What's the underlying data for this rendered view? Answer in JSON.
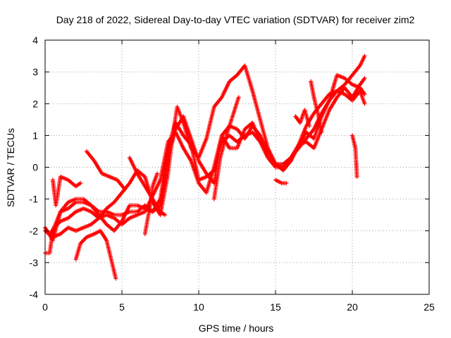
{
  "chart_data": {
    "type": "scatter",
    "title": "Day 218 of 2022, Sidereal Day-to-day VTEC variation (SDTVAR) for receiver zim2",
    "xlabel": "GPS time / hours",
    "ylabel": "SDTVAR / TECUs",
    "xlim": [
      0,
      25
    ],
    "ylim": [
      -4,
      4
    ],
    "xticks": [
      "0",
      "5",
      "10",
      "15",
      "20",
      "25"
    ],
    "yticks": [
      "-4",
      "-3",
      "-2",
      "-1",
      "0",
      "1",
      "2",
      "3",
      "4"
    ],
    "grid": true,
    "marker": "+",
    "color": "#ff0000",
    "series": [
      {
        "points": [
          [
            0,
            -2.0
          ],
          [
            0.5,
            -2.2
          ],
          [
            1,
            -2.1
          ],
          [
            1.5,
            -1.9
          ],
          [
            2,
            -2.0
          ],
          [
            2.5,
            -1.9
          ],
          [
            3,
            -1.8
          ],
          [
            3.5,
            -1.6
          ],
          [
            4,
            -1.3
          ],
          [
            4.5,
            -1.1
          ],
          [
            5,
            -0.8
          ],
          [
            5.5,
            -0.5
          ],
          [
            6,
            -0.1
          ],
          [
            6.5,
            -0.3
          ],
          [
            7,
            -1.1
          ],
          [
            7.5,
            -1.5
          ],
          [
            8,
            -0.2
          ],
          [
            8.3,
            1.0
          ],
          [
            8.6,
            1.9
          ],
          [
            9,
            1.4
          ],
          [
            9.5,
            0.6
          ],
          [
            10,
            0.3
          ],
          [
            10.5,
            0.9
          ],
          [
            11,
            1.9
          ],
          [
            11.5,
            2.2
          ],
          [
            12,
            2.7
          ],
          [
            12.5,
            2.9
          ],
          [
            13,
            3.2
          ],
          [
            13.5,
            2.4
          ],
          [
            14,
            1.5
          ],
          [
            14.5,
            0.6
          ],
          [
            15,
            0.1
          ],
          [
            15.5,
            0.0
          ],
          [
            16,
            0.2
          ],
          [
            16.5,
            0.7
          ],
          [
            17,
            1.3
          ],
          [
            17.5,
            1.7
          ],
          [
            18,
            2.0
          ],
          [
            18.5,
            2.3
          ],
          [
            19,
            2.4
          ],
          [
            19.5,
            2.6
          ],
          [
            20,
            2.9
          ],
          [
            20.5,
            3.2
          ],
          [
            20.8,
            3.5
          ]
        ]
      },
      {
        "points": [
          [
            0,
            -1.9
          ],
          [
            0.5,
            -2.3
          ],
          [
            1,
            -1.4
          ],
          [
            1.5,
            -1.1
          ],
          [
            2,
            -1.0
          ],
          [
            2.5,
            -1.0
          ],
          [
            3,
            -1.2
          ],
          [
            3.5,
            -1.5
          ],
          [
            4,
            -1.8
          ],
          [
            4.5,
            -2.0
          ],
          [
            5,
            -1.7
          ],
          [
            5.5,
            -1.2
          ],
          [
            6,
            -1.2
          ],
          [
            6.5,
            -1.3
          ],
          [
            7,
            -1.4
          ],
          [
            7.5,
            -1.0
          ],
          [
            8,
            0.6
          ],
          [
            8.5,
            1.4
          ],
          [
            9,
            1.0
          ],
          [
            9.5,
            0.7
          ],
          [
            10,
            -0.4
          ],
          [
            10.5,
            -0.3
          ],
          [
            11,
            -0.1
          ],
          [
            11.5,
            0.8
          ],
          [
            12,
            1.0
          ],
          [
            12.5,
            0.8
          ],
          [
            13,
            1.0
          ],
          [
            13.5,
            1.1
          ],
          [
            14,
            0.8
          ],
          [
            14.5,
            0.3
          ],
          [
            15,
            0.0
          ],
          [
            15.5,
            0.0
          ],
          [
            16,
            0.3
          ],
          [
            16.5,
            0.6
          ],
          [
            17,
            0.9
          ],
          [
            17.5,
            1.2
          ],
          [
            18,
            1.7
          ],
          [
            18.5,
            2.1
          ],
          [
            19,
            2.4
          ],
          [
            19.5,
            2.3
          ],
          [
            20,
            2.1
          ],
          [
            20.5,
            2.4
          ],
          [
            20.8,
            2.0
          ]
        ]
      },
      {
        "points": [
          [
            0.3,
            -2.1
          ],
          [
            0.6,
            -1.9
          ],
          [
            1,
            -1.7
          ],
          [
            1.5,
            -1.6
          ],
          [
            2,
            -1.4
          ],
          [
            2.5,
            -1.3
          ],
          [
            3,
            -1.4
          ],
          [
            3.5,
            -1.6
          ],
          [
            4,
            -1.5
          ],
          [
            4.5,
            -1.6
          ],
          [
            5,
            -1.8
          ],
          [
            5.5,
            -1.6
          ],
          [
            6,
            -1.5
          ],
          [
            6.5,
            -1.4
          ],
          [
            7,
            -0.9
          ],
          [
            7.5,
            -0.4
          ],
          [
            8,
            0.8
          ],
          [
            8.5,
            1.1
          ],
          [
            9,
            0.6
          ],
          [
            9.5,
            0.2
          ],
          [
            10,
            -0.5
          ],
          [
            10.5,
            -0.8
          ],
          [
            11,
            0.0
          ],
          [
            11.5,
            1.0
          ],
          [
            12,
            0.6
          ],
          [
            12.5,
            0.6
          ],
          [
            13,
            1.2
          ],
          [
            13.5,
            1.4
          ],
          [
            14,
            0.8
          ],
          [
            14.5,
            0.5
          ],
          [
            15,
            0.1
          ],
          [
            15.5,
            -0.1
          ],
          [
            16,
            0.2
          ],
          [
            16.5,
            0.7
          ],
          [
            17,
            0.8
          ],
          [
            17.5,
            0.6
          ],
          [
            18,
            1.2
          ],
          [
            18.5,
            1.8
          ],
          [
            19,
            2.2
          ],
          [
            19.5,
            2.5
          ],
          [
            20,
            2.2
          ],
          [
            20.5,
            2.6
          ],
          [
            20.8,
            2.8
          ]
        ]
      },
      {
        "points": [
          [
            0,
            -2.7
          ],
          [
            0.3,
            -2.7
          ],
          [
            0.5,
            -2.0
          ],
          [
            1,
            -1.4
          ],
          [
            1.5,
            -1.3
          ],
          [
            2,
            -1.1
          ],
          [
            2.5,
            -1.1
          ],
          [
            3,
            -1.2
          ],
          [
            3.5,
            -1.4
          ],
          [
            4,
            -1.4
          ],
          [
            4.5,
            -1.5
          ],
          [
            5,
            -1.5
          ],
          [
            5.5,
            -1.4
          ],
          [
            6,
            -1.4
          ],
          [
            6.5,
            -1.2
          ],
          [
            7,
            -1.4
          ],
          [
            7.5,
            -1.2
          ],
          [
            8,
            0.3
          ],
          [
            8.5,
            1.2
          ],
          [
            9,
            1.6
          ],
          [
            9.5,
            0.9
          ],
          [
            10,
            0.2
          ],
          [
            10.5,
            -0.2
          ],
          [
            11,
            -0.5
          ],
          [
            11.5,
            1.0
          ],
          [
            12,
            1.3
          ],
          [
            12.5,
            1.2
          ],
          [
            13,
            0.9
          ],
          [
            13.5,
            1.3
          ],
          [
            14,
            1.0
          ],
          [
            14.5,
            0.5
          ],
          [
            15,
            0.1
          ],
          [
            15.5,
            0.1
          ],
          [
            16,
            0.3
          ],
          [
            16.5,
            0.7
          ],
          [
            17,
            1.1
          ],
          [
            17.5,
            0.9
          ],
          [
            18,
            1.6
          ],
          [
            18.5,
            2.1
          ],
          [
            19,
            2.9
          ],
          [
            19.5,
            2.8
          ],
          [
            20,
            2.6
          ],
          [
            20.5,
            2.5
          ],
          [
            20.8,
            2.3
          ]
        ]
      },
      {
        "points": [
          [
            2,
            -2.9
          ],
          [
            2.3,
            -2.4
          ],
          [
            2.7,
            -2.2
          ],
          [
            3.2,
            -2.1
          ],
          [
            3.6,
            -2.0
          ],
          [
            4,
            -2.3
          ],
          [
            4.3,
            -2.9
          ],
          [
            4.6,
            -3.5
          ]
        ]
      },
      {
        "points": [
          [
            0.5,
            -0.4
          ],
          [
            0.7,
            -1.2
          ],
          [
            1,
            -0.3
          ],
          [
            1.5,
            -0.4
          ],
          [
            2,
            -0.6
          ],
          [
            2.3,
            -0.5
          ]
        ]
      },
      {
        "points": [
          [
            2.7,
            0.5
          ],
          [
            3.2,
            0.2
          ],
          [
            3.7,
            -0.2
          ],
          [
            4.2,
            -0.3
          ],
          [
            4.7,
            -0.4
          ],
          [
            5.2,
            -0.7
          ]
        ]
      },
      {
        "points": [
          [
            5.5,
            0.3
          ],
          [
            6,
            -0.2
          ],
          [
            6.5,
            -0.6
          ],
          [
            7,
            -1.0
          ],
          [
            7.5,
            -1.4
          ],
          [
            7.8,
            -1.5
          ]
        ]
      },
      {
        "points": [
          [
            6.5,
            -2.1
          ],
          [
            6.8,
            -1.3
          ],
          [
            7,
            -0.6
          ],
          [
            7.3,
            -0.2
          ]
        ]
      },
      {
        "points": [
          [
            11,
            -1.0
          ],
          [
            11.4,
            0.3
          ],
          [
            11.8,
            1.0
          ],
          [
            12.2,
            1.6
          ],
          [
            12.6,
            2.2
          ]
        ]
      },
      {
        "points": [
          [
            15,
            -0.4
          ],
          [
            15.4,
            -0.5
          ],
          [
            15.7,
            -0.5
          ]
        ]
      },
      {
        "points": [
          [
            16.3,
            1.6
          ],
          [
            16.6,
            1.4
          ],
          [
            16.9,
            1.8
          ],
          [
            17.2,
            1.3
          ]
        ]
      },
      {
        "points": [
          [
            17.3,
            2.7
          ],
          [
            17.5,
            2.2
          ],
          [
            17.8,
            1.6
          ],
          [
            18,
            1.1
          ]
        ]
      },
      {
        "points": [
          [
            20,
            1.0
          ],
          [
            20.2,
            0.6
          ],
          [
            20.3,
            -0.3
          ]
        ]
      }
    ]
  }
}
